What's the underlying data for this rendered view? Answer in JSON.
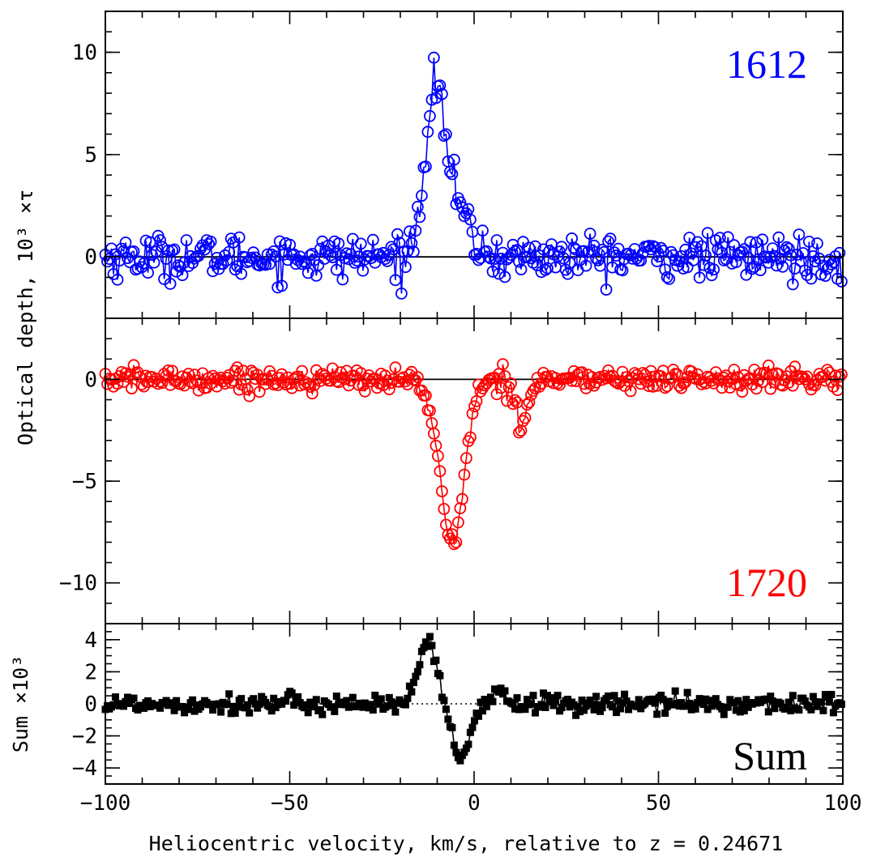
{
  "chart_data": {
    "type": "line",
    "xlabel": "Heliocentric velocity, km/s, relative to z = 0.24671",
    "ylabel": "Optical depth, 10³ ×τ",
    "xlim": [
      -100,
      100
    ],
    "x_ticks": [
      "−100",
      "−50",
      "0",
      "50",
      "100"
    ],
    "panels": [
      {
        "label": "1612",
        "color": "#0000ff",
        "marker": "open-circle",
        "ylim": [
          -3,
          12
        ],
        "y_ticks": [
          {
            "v": 10,
            "t": "10"
          },
          {
            "v": 5,
            "t": "5"
          },
          {
            "v": 0,
            "t": "0"
          }
        ],
        "zero_line": "solid",
        "features": [
          {
            "center": -10.5,
            "amp": 8.4,
            "sigma": 2.8
          },
          {
            "center": -4,
            "amp": 2.0,
            "sigma": 3.0
          }
        ],
        "noise": 0.95
      },
      {
        "label": "1720",
        "color": "#ff0000",
        "marker": "open-circle",
        "ylim": [
          -12,
          3
        ],
        "y_ticks": [
          {
            "v": 0,
            "t": "0"
          },
          {
            "v": -5,
            "t": "−5"
          },
          {
            "v": -10,
            "t": "−10"
          }
        ],
        "zero_line": "solid",
        "features": [
          {
            "center": -6,
            "amp": -8.0,
            "sigma": 3.3
          },
          {
            "center": 13,
            "amp": -1.9,
            "sigma": 1.8
          }
        ],
        "noise": 0.5
      },
      {
        "label": "Sum",
        "ylabel": "Sum ×10³",
        "color": "#000000",
        "marker": "filled-square",
        "ylim": [
          -5,
          5
        ],
        "y_ticks": [
          {
            "v": 4,
            "t": "4"
          },
          {
            "v": 2,
            "t": "2"
          },
          {
            "v": 0,
            "t": "0"
          },
          {
            "v": -2,
            "t": "−2"
          },
          {
            "v": -4,
            "t": "−4"
          }
        ],
        "zero_line": "dotted",
        "features": [
          {
            "center": -12.5,
            "amp": 3.8,
            "sigma": 2.4
          },
          {
            "center": -3.5,
            "amp": -3.3,
            "sigma": 2.6
          },
          {
            "center": 7,
            "amp": 0.8,
            "sigma": 1.5
          }
        ],
        "noise": 0.55
      }
    ]
  }
}
